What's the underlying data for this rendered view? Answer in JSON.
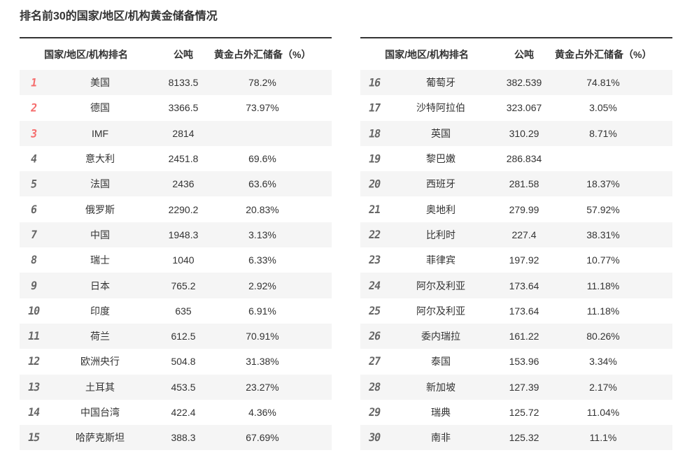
{
  "title": "排名前30的国家/地区/机构黄金储备情况",
  "table_header": {
    "rank_country": "国家/地区/机构排名",
    "tonnes": "公吨",
    "percent": "黄金占外汇储备（%）"
  },
  "colors": {
    "accent_rank_top": "#f56c6c",
    "rank": "#666666",
    "text": "#333333",
    "stripe": "#f5f5f5",
    "border_top": "#333333"
  },
  "tables": [
    {
      "rows": [
        {
          "rank": "1",
          "country": "美国",
          "tonnes": "8133.5",
          "percent": "78.2%"
        },
        {
          "rank": "2",
          "country": "德国",
          "tonnes": "3366.5",
          "percent": "73.97%"
        },
        {
          "rank": "3",
          "country": "IMF",
          "tonnes": "2814",
          "percent": ""
        },
        {
          "rank": "4",
          "country": "意大利",
          "tonnes": "2451.8",
          "percent": "69.6%"
        },
        {
          "rank": "5",
          "country": "法国",
          "tonnes": "2436",
          "percent": "63.6%"
        },
        {
          "rank": "6",
          "country": "俄罗斯",
          "tonnes": "2290.2",
          "percent": "20.83%"
        },
        {
          "rank": "7",
          "country": "中国",
          "tonnes": "1948.3",
          "percent": "3.13%"
        },
        {
          "rank": "8",
          "country": "瑞士",
          "tonnes": "1040",
          "percent": "6.33%"
        },
        {
          "rank": "9",
          "country": "日本",
          "tonnes": "765.2",
          "percent": "2.92%"
        },
        {
          "rank": "10",
          "country": "印度",
          "tonnes": "635",
          "percent": "6.91%"
        },
        {
          "rank": "11",
          "country": "荷兰",
          "tonnes": "612.5",
          "percent": "70.91%"
        },
        {
          "rank": "12",
          "country": "欧洲央行",
          "tonnes": "504.8",
          "percent": "31.38%"
        },
        {
          "rank": "13",
          "country": "土耳其",
          "tonnes": "453.5",
          "percent": "23.27%"
        },
        {
          "rank": "14",
          "country": "中国台湾",
          "tonnes": "422.4",
          "percent": "4.36%"
        },
        {
          "rank": "15",
          "country": "哈萨克斯坦",
          "tonnes": "388.3",
          "percent": "67.69%"
        }
      ]
    },
    {
      "rows": [
        {
          "rank": "16",
          "country": "葡萄牙",
          "tonnes": "382.539",
          "percent": "74.81%"
        },
        {
          "rank": "17",
          "country": "沙特阿拉伯",
          "tonnes": "323.067",
          "percent": "3.05%"
        },
        {
          "rank": "18",
          "country": "英国",
          "tonnes": "310.29",
          "percent": "8.71%"
        },
        {
          "rank": "19",
          "country": "黎巴嫩",
          "tonnes": "286.834",
          "percent": ""
        },
        {
          "rank": "20",
          "country": "西班牙",
          "tonnes": "281.58",
          "percent": "18.37%"
        },
        {
          "rank": "21",
          "country": "奥地利",
          "tonnes": "279.99",
          "percent": "57.92%"
        },
        {
          "rank": "22",
          "country": "比利时",
          "tonnes": "227.4",
          "percent": "38.31%"
        },
        {
          "rank": "23",
          "country": "菲律宾",
          "tonnes": "197.92",
          "percent": "10.77%"
        },
        {
          "rank": "24",
          "country": "阿尔及利亚",
          "tonnes": "173.64",
          "percent": "11.18%"
        },
        {
          "rank": "25",
          "country": "阿尔及利亚",
          "tonnes": "173.64",
          "percent": "11.18%"
        },
        {
          "rank": "26",
          "country": "委内瑞拉",
          "tonnes": "161.22",
          "percent": "80.26%"
        },
        {
          "rank": "27",
          "country": "泰国",
          "tonnes": "153.96",
          "percent": "3.34%"
        },
        {
          "rank": "28",
          "country": "新加坡",
          "tonnes": "127.39",
          "percent": "2.17%"
        },
        {
          "rank": "29",
          "country": "瑞典",
          "tonnes": "125.72",
          "percent": "11.04%"
        },
        {
          "rank": "30",
          "country": "南非",
          "tonnes": "125.32",
          "percent": "11.1%"
        }
      ]
    }
  ]
}
